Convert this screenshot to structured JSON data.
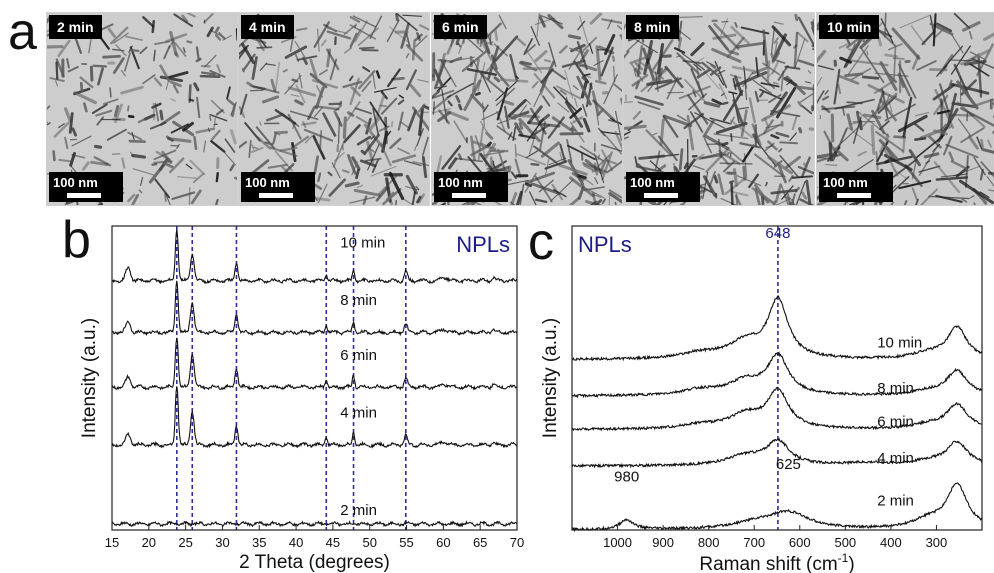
{
  "panel_labels": {
    "a": "a",
    "b": "b",
    "c": "c"
  },
  "tem_images": [
    {
      "time": "2 min",
      "scale": "100 nm",
      "density": 0.35,
      "length": 0.35
    },
    {
      "time": "4 min",
      "scale": "100 nm",
      "density": 0.5,
      "length": 0.55
    },
    {
      "time": "6 min",
      "scale": "100 nm",
      "density": 0.8,
      "length": 0.65
    },
    {
      "time": "8 min",
      "scale": "100 nm",
      "density": 0.75,
      "length": 0.7
    },
    {
      "time": "10 min",
      "scale": "100 nm",
      "density": 0.55,
      "length": 0.9
    }
  ],
  "chart_data": [
    {
      "type": "line",
      "panel": "b",
      "title": "NPLs",
      "xlabel": "2 Theta (degrees)",
      "ylabel": "Intensity (a.u.)",
      "xlim": [
        15,
        70
      ],
      "xticks": [
        15,
        20,
        25,
        30,
        35,
        40,
        45,
        50,
        55,
        60,
        65,
        70
      ],
      "reference_lines": [
        23.8,
        25.9,
        31.9,
        44.1,
        47.8,
        54.9
      ],
      "series": [
        {
          "name": "2 min",
          "baseline": 0.02,
          "scale": 0.15,
          "peaks": [
            [
              23.8,
              0.12,
              0.3
            ],
            [
              25.9,
              0.08,
              0.3
            ],
            [
              31.9,
              0.1,
              0.25
            ],
            [
              44.1,
              0.05,
              0.2
            ],
            [
              47.8,
              0.06,
              0.2
            ],
            [
              54.9,
              0.05,
              0.25
            ]
          ]
        },
        {
          "name": "4 min",
          "baseline": 0.28,
          "scale": 1.0,
          "peaks": [
            [
              17.2,
              0.18,
              0.45
            ],
            [
              23.8,
              1.0,
              0.28
            ],
            [
              25.9,
              0.55,
              0.35
            ],
            [
              31.9,
              0.32,
              0.28
            ],
            [
              44.1,
              0.14,
              0.22
            ],
            [
              47.8,
              0.22,
              0.22
            ],
            [
              54.9,
              0.16,
              0.3
            ],
            [
              60.1,
              0.05,
              0.6
            ],
            [
              66.8,
              0.05,
              0.3
            ]
          ]
        },
        {
          "name": "6 min",
          "baseline": 0.47,
          "scale": 1.0,
          "peaks": [
            [
              17.2,
              0.17,
              0.45
            ],
            [
              23.8,
              0.85,
              0.28
            ],
            [
              25.9,
              0.55,
              0.35
            ],
            [
              31.9,
              0.32,
              0.28
            ],
            [
              44.1,
              0.12,
              0.22
            ],
            [
              47.8,
              0.2,
              0.22
            ],
            [
              54.9,
              0.15,
              0.3
            ],
            [
              60.1,
              0.05,
              0.6
            ],
            [
              66.8,
              0.05,
              0.3
            ]
          ]
        },
        {
          "name": "8 min",
          "baseline": 0.65,
          "scale": 1.0,
          "peaks": [
            [
              17.2,
              0.18,
              0.45
            ],
            [
              23.8,
              0.85,
              0.28
            ],
            [
              25.9,
              0.5,
              0.35
            ],
            [
              31.9,
              0.3,
              0.28
            ],
            [
              44.1,
              0.12,
              0.22
            ],
            [
              47.8,
              0.18,
              0.22
            ],
            [
              54.9,
              0.14,
              0.3
            ],
            [
              60.1,
              0.05,
              0.6
            ],
            [
              66.8,
              0.05,
              0.3
            ]
          ]
        },
        {
          "name": "10 min",
          "baseline": 0.82,
          "scale": 1.0,
          "peaks": [
            [
              17.2,
              0.22,
              0.45
            ],
            [
              23.8,
              0.85,
              0.28
            ],
            [
              25.9,
              0.45,
              0.35
            ],
            [
              31.9,
              0.3,
              0.28
            ],
            [
              44.1,
              0.12,
              0.22
            ],
            [
              47.8,
              0.18,
              0.22
            ],
            [
              54.9,
              0.16,
              0.3
            ],
            [
              60.1,
              0.06,
              0.6
            ],
            [
              66.8,
              0.06,
              0.3
            ]
          ]
        }
      ],
      "series_label_positions": [
        [
          46,
          0.05
        ],
        [
          46,
          0.37
        ],
        [
          46,
          0.56
        ],
        [
          46,
          0.74
        ],
        [
          46,
          0.93
        ]
      ]
    },
    {
      "type": "line",
      "panel": "c",
      "title": "NPLs",
      "xlabel": "Raman shift",
      "xlabel_unit": "(cm",
      "xlabel_sup": "-1",
      "xlabel_close": ")",
      "ylabel": "Intensity (a.u.)",
      "xlim": [
        1100,
        200
      ],
      "xticks": [
        1000,
        900,
        800,
        700,
        600,
        500,
        400,
        300
      ],
      "reference_lines": [
        648
      ],
      "annotations": [
        {
          "text": "648",
          "x": 648,
          "y": 0.96
        },
        {
          "text": "625",
          "x": 625,
          "y": 0.2
        },
        {
          "text": "980",
          "x": 980,
          "y": 0.16
        }
      ],
      "series": [
        {
          "name": "2 min",
          "baseline": 0.0,
          "bands": [
            [
              980,
              0.07,
              18
            ],
            [
              625,
              0.12,
              55
            ],
            [
              700,
              0.04,
              60
            ],
            [
              255,
              0.32,
              28
            ],
            [
              320,
              0.06,
              40
            ]
          ]
        },
        {
          "name": "4 min",
          "baseline": 0.21,
          "bands": [
            [
              648,
              0.17,
              30
            ],
            [
              720,
              0.07,
              50
            ],
            [
              450,
              0.02,
              60
            ],
            [
              255,
              0.17,
              28
            ],
            [
              320,
              0.03,
              40
            ]
          ]
        },
        {
          "name": "6 min",
          "baseline": 0.33,
          "bands": [
            [
              648,
              0.27,
              28
            ],
            [
              720,
              0.1,
              45
            ],
            [
              820,
              0.03,
              50
            ],
            [
              255,
              0.18,
              28
            ],
            [
              320,
              0.03,
              40
            ]
          ]
        },
        {
          "name": "8 min",
          "baseline": 0.44,
          "bands": [
            [
              648,
              0.28,
              28
            ],
            [
              720,
              0.1,
              45
            ],
            [
              820,
              0.04,
              50
            ],
            [
              255,
              0.18,
              28
            ],
            [
              320,
              0.03,
              40
            ]
          ]
        },
        {
          "name": "10 min",
          "baseline": 0.56,
          "bands": [
            [
              648,
              0.42,
              26
            ],
            [
              720,
              0.12,
              45
            ],
            [
              820,
              0.04,
              50
            ],
            [
              255,
              0.23,
              26
            ],
            [
              320,
              0.04,
              40
            ]
          ]
        }
      ],
      "series_label_positions": [
        [
          430,
          0.08
        ],
        [
          430,
          0.22
        ],
        [
          430,
          0.34
        ],
        [
          430,
          0.45
        ],
        [
          430,
          0.6
        ]
      ]
    }
  ],
  "colors": {
    "reference_line": "#2e2ea0",
    "title": "#1b1b8a",
    "curve": "#111111"
  }
}
